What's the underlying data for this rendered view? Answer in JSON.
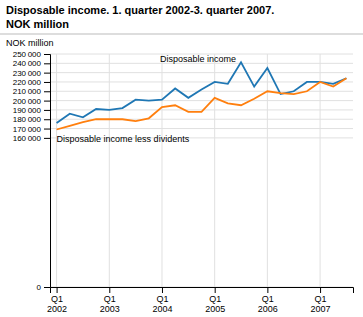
{
  "chart_data": {
    "type": "line",
    "title": "Disposable income. 1. quarter 2002-3. quarter 2007.",
    "subtitle": "NOK million",
    "y_label": "NOK million",
    "categories": [
      "Q1\n2002",
      null,
      null,
      null,
      "Q1\n2003",
      null,
      null,
      null,
      "Q1\n2004",
      null,
      null,
      null,
      "Q1\n2005",
      null,
      null,
      null,
      "Q1\n2006",
      null,
      null,
      null,
      "Q1\n2007",
      null,
      null
    ],
    "series": [
      {
        "name": "Disposable income",
        "values": [
          176000,
          186000,
          182000,
          191000,
          190000,
          192000,
          201000,
          200000,
          201000,
          213000,
          203000,
          212000,
          220000,
          218000,
          241000,
          215000,
          235000,
          207000,
          210000,
          220000,
          220000,
          218000,
          224000
        ]
      },
      {
        "name": "Disposable income less dividents",
        "values": [
          169000,
          173000,
          177000,
          180000,
          180000,
          180000,
          178000,
          181000,
          193000,
          195000,
          188000,
          188000,
          203000,
          197000,
          195000,
          202000,
          210000,
          208000,
          207000,
          210000,
          220000,
          215000,
          224000
        ]
      }
    ],
    "ylim": [
      0,
      250000
    ],
    "yticks": [
      0,
      {
        "value": 160000,
        "label": "160 000"
      },
      {
        "value": 170000,
        "label": "170 000"
      },
      {
        "value": 180000,
        "label": "180 000"
      },
      {
        "value": 190000,
        "label": "190 000"
      },
      {
        "value": 200000,
        "label": "200 000"
      },
      {
        "value": 210000,
        "label": "210 000"
      },
      {
        "value": 220000,
        "label": "220 000"
      },
      {
        "value": 230000,
        "label": "230 000"
      },
      {
        "value": 240000,
        "label": "240 000"
      },
      {
        "value": 250000,
        "label": "250 000"
      }
    ],
    "grid": true
  }
}
